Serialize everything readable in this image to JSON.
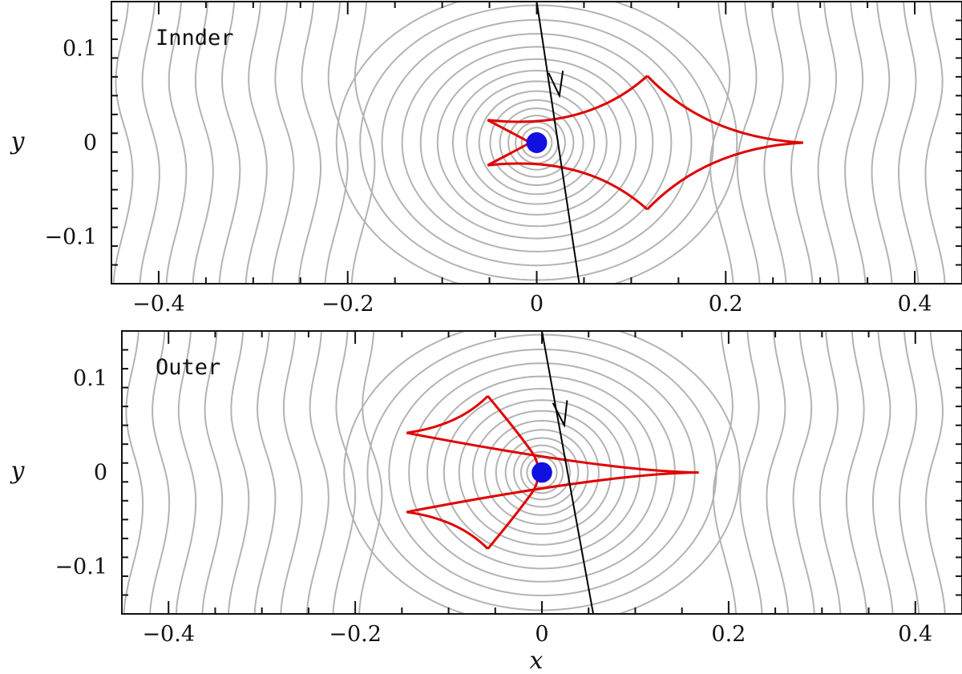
{
  "chart_data": [
    {
      "type": "line",
      "panel_label": "Innder",
      "xlabel": "",
      "ylabel": "y",
      "xlim": [
        -0.45,
        0.45
      ],
      "ylim": [
        -0.15,
        0.15
      ],
      "x_ticks": [
        -0.4,
        -0.2,
        0,
        0.2,
        0.4
      ],
      "x_tick_labels": [
        "−0.4",
        "−0.2",
        "0",
        "0.2",
        "0.4"
      ],
      "y_ticks": [
        -0.1,
        0,
        0.1
      ],
      "y_tick_labels": [
        "−0.1",
        "0",
        "0.1"
      ],
      "grid": false,
      "colors": {
        "contours": "#b3b3b3",
        "caustic": "#e00000",
        "source": "#1010e0",
        "trajectory": "#000000"
      },
      "source": {
        "x": 0,
        "y": 0,
        "radius": 0.011
      },
      "trajectory": {
        "x": [
          0.0,
          0.045
        ],
        "y": [
          0.15,
          -0.15
        ],
        "arrow_at": [
          0.024,
          0.05
        ]
      },
      "caustic": {
        "central_cusps": [
          [
            -0.052,
            0.024
          ],
          [
            -0.052,
            -0.024
          ]
        ],
        "central_near": [
          -0.007,
          0
        ],
        "outer_cusps": [
          [
            0.117,
            0.071
          ],
          [
            0.282,
            0
          ],
          [
            0.117,
            -0.071
          ]
        ],
        "far_cusp": [
          -0.052,
          0
        ]
      }
    },
    {
      "type": "line",
      "panel_label": "Outer",
      "xlabel": "x",
      "ylabel": "y",
      "xlim": [
        -0.45,
        0.45
      ],
      "ylim": [
        -0.15,
        0.15
      ],
      "x_ticks": [
        -0.4,
        -0.2,
        0,
        0.2,
        0.4
      ],
      "x_tick_labels": [
        "−0.4",
        "−0.2",
        "0",
        "0.2",
        "0.4"
      ],
      "y_ticks": [
        -0.1,
        0,
        0.1
      ],
      "y_tick_labels": [
        "−0.1",
        "0",
        "0.1"
      ],
      "grid": false,
      "colors": {
        "contours": "#b3b3b3",
        "caustic": "#e00000",
        "source": "#1010e0",
        "trajectory": "#000000"
      },
      "source": {
        "x": 0,
        "y": 0,
        "radius": 0.011
      },
      "trajectory": {
        "x": [
          0.0,
          0.055
        ],
        "y": [
          0.15,
          -0.15
        ],
        "arrow_at": [
          0.024,
          0.05
        ]
      },
      "caustic": {
        "cusps": [
          [
            -0.145,
            0.042
          ],
          [
            -0.058,
            0.081
          ],
          [
            0.168,
            0
          ],
          [
            -0.058,
            -0.081
          ],
          [
            -0.145,
            -0.042
          ]
        ],
        "central_near": [
          -0.007,
          0
        ]
      }
    }
  ]
}
